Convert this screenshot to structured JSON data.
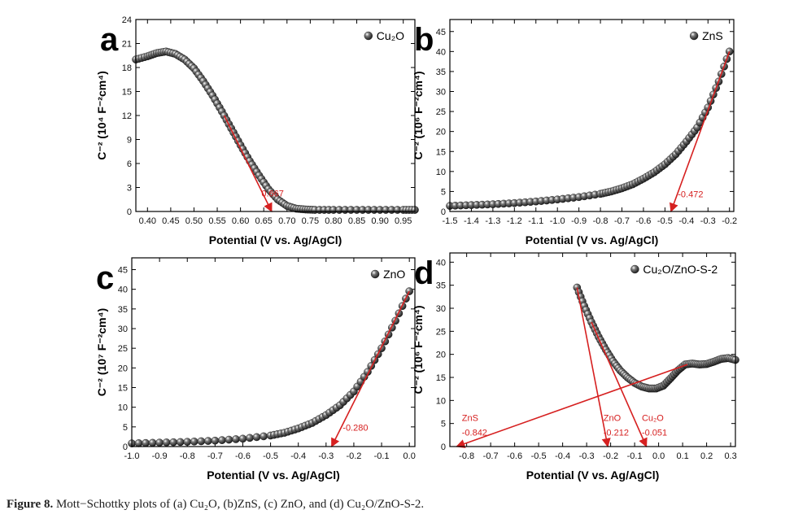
{
  "caption": {
    "label": "Figure 8.",
    "text": "Mott−Schottky plots of (a) Cu₂O, (b)ZnS, (c) ZnO, and (d) Cu₂O/ZnO-S-2."
  },
  "colors": {
    "fit": "#d62020",
    "marker": "#1a1a1a",
    "axis": "#000000"
  },
  "chart_data": [
    {
      "type": "scatter",
      "panel": "a",
      "legend": "Cu₂O",
      "xlabel": "Potential (V vs. Ag/AgCl)",
      "ylabel": "C⁻² (10⁴ F⁻²cm⁴)",
      "xlim": [
        0.375,
        0.975
      ],
      "ylim": [
        0,
        24
      ],
      "xticks": [
        0.4,
        0.45,
        0.5,
        0.55,
        0.6,
        0.65,
        0.7,
        0.75,
        0.8,
        0.85,
        0.9,
        0.95
      ],
      "xtick_labels": [
        "0.40",
        "0.45",
        "0.50",
        "0.55",
        "0.60",
        "0.65",
        "0.70",
        "0.75",
        "0.80",
        "0.85",
        "0.90",
        "0.95"
      ],
      "yticks": [
        0,
        3,
        6,
        9,
        12,
        15,
        18,
        21,
        24
      ],
      "ytick_labels": [
        "0",
        "3",
        "6",
        "9",
        "12",
        "15",
        "18",
        "21",
        "24"
      ],
      "series": [
        {
          "x": [
            0.375,
            0.4,
            0.42,
            0.44,
            0.46,
            0.48,
            0.5,
            0.52,
            0.54,
            0.56,
            0.58,
            0.6,
            0.62,
            0.64,
            0.66,
            0.68,
            0.7,
            0.72,
            0.74,
            0.76,
            0.8,
            0.85,
            0.9,
            0.95,
            0.975
          ],
          "y": [
            19.0,
            19.4,
            19.8,
            20.0,
            19.7,
            19.0,
            17.9,
            16.3,
            14.5,
            12.5,
            10.4,
            8.3,
            6.3,
            4.5,
            2.8,
            1.5,
            0.7,
            0.35,
            0.25,
            0.2,
            0.2,
            0.2,
            0.2,
            0.2,
            0.2
          ]
        }
      ],
      "fits": [
        {
          "from": [
            0.565,
            12.0
          ],
          "to": [
            0.667,
            0
          ]
        }
      ],
      "annotations": [
        {
          "text": "0.667",
          "x": 0.645,
          "y": 1.9
        }
      ]
    },
    {
      "type": "scatter",
      "panel": "b",
      "legend": "ZnS",
      "xlabel": "Potential (V vs. Ag/AgCl)",
      "ylabel": "C⁻² (10⁶ F⁻²cm⁴)",
      "xlim": [
        -1.5,
        -0.18
      ],
      "ylim": [
        0,
        48
      ],
      "xticks": [
        -1.5,
        -1.4,
        -1.3,
        -1.2,
        -1.1,
        -1.0,
        -0.9,
        -0.8,
        -0.7,
        -0.6,
        -0.5,
        -0.4,
        -0.3,
        -0.2
      ],
      "xtick_labels": [
        "-1.5",
        "-1.4",
        "-1.3",
        "-1.2",
        "-1.1",
        "-1.0",
        "-0.9",
        "-0.8",
        "-0.7",
        "-0.6",
        "-0.5",
        "-0.4",
        "-0.3",
        "-0.2"
      ],
      "yticks": [
        0,
        5,
        10,
        15,
        20,
        25,
        30,
        35,
        40,
        45
      ],
      "ytick_labels": [
        "0",
        "5",
        "10",
        "15",
        "20",
        "25",
        "30",
        "35",
        "40",
        "45"
      ],
      "series": [
        {
          "x": [
            -1.5,
            -1.4,
            -1.3,
            -1.2,
            -1.1,
            -1.0,
            -0.9,
            -0.8,
            -0.75,
            -0.7,
            -0.65,
            -0.6,
            -0.55,
            -0.5,
            -0.45,
            -0.4,
            -0.35,
            -0.3,
            -0.25,
            -0.2
          ],
          "y": [
            1.4,
            1.6,
            1.8,
            2.1,
            2.5,
            3.0,
            3.6,
            4.4,
            5.0,
            5.8,
            6.8,
            8.2,
            9.8,
            11.8,
            14.3,
            17.5,
            21.0,
            26.0,
            32.5,
            40.0
          ]
        }
      ],
      "fits": [
        {
          "from": [
            -0.2,
            40.0
          ],
          "to": [
            -0.472,
            0
          ]
        }
      ],
      "annotations": [
        {
          "text": "-0.472",
          "x": -0.44,
          "y": 3.6
        }
      ]
    },
    {
      "type": "scatter",
      "panel": "c",
      "legend": "ZnO",
      "xlabel": "Potential (V vs. Ag/AgCl)",
      "ylabel": "C⁻² (10⁷ F⁻²cm⁴)",
      "xlim": [
        -1.0,
        0.02
      ],
      "ylim": [
        0,
        48
      ],
      "xticks": [
        -1.0,
        -0.9,
        -0.8,
        -0.7,
        -0.6,
        -0.5,
        -0.4,
        -0.3,
        -0.2,
        -0.1,
        0.0
      ],
      "xtick_labels": [
        "-1.0",
        "-0.9",
        "-0.8",
        "-0.7",
        "-0.6",
        "-0.5",
        "-0.4",
        "-0.3",
        "-0.2",
        "-0.1",
        "0.0"
      ],
      "yticks": [
        0,
        5,
        10,
        15,
        20,
        25,
        30,
        35,
        40,
        45
      ],
      "ytick_labels": [
        "0",
        "5",
        "10",
        "15",
        "20",
        "25",
        "30",
        "35",
        "40",
        "45"
      ],
      "series": [
        {
          "x": [
            -1.0,
            -0.9,
            -0.8,
            -0.7,
            -0.6,
            -0.5,
            -0.45,
            -0.4,
            -0.35,
            -0.3,
            -0.25,
            -0.2,
            -0.15,
            -0.1,
            -0.05,
            0.0
          ],
          "y": [
            0.8,
            1.0,
            1.2,
            1.5,
            2.0,
            2.8,
            3.5,
            4.6,
            6.0,
            8.0,
            10.5,
            14.0,
            19.0,
            25.0,
            32.0,
            39.5
          ]
        }
      ],
      "fits": [
        {
          "from": [
            0.0,
            39.5
          ],
          "to": [
            -0.28,
            0
          ]
        }
      ],
      "annotations": [
        {
          "text": "-0.280",
          "x": -0.24,
          "y": 4.0
        }
      ]
    },
    {
      "type": "scatter",
      "panel": "d",
      "legend": "Cu₂O/ZnO-S-2",
      "xlabel": "Potential (V vs. Ag/AgCl)",
      "ylabel": "C⁻² (10⁶ F⁻²cm⁴)",
      "xlim": [
        -0.87,
        0.32
      ],
      "ylim": [
        0,
        42
      ],
      "xticks": [
        -0.8,
        -0.7,
        -0.6,
        -0.5,
        -0.4,
        -0.3,
        -0.2,
        -0.1,
        0.0,
        0.1,
        0.2,
        0.3
      ],
      "xtick_labels": [
        "-0.8",
        "-0.7",
        "-0.6",
        "-0.5",
        "-0.4",
        "-0.3",
        "-0.2",
        "-0.1",
        "0.0",
        "0.1",
        "0.2",
        "0.3"
      ],
      "yticks": [
        0,
        5,
        10,
        15,
        20,
        25,
        30,
        35,
        40
      ],
      "ytick_labels": [
        "0",
        "5",
        "10",
        "15",
        "20",
        "25",
        "30",
        "35",
        "40"
      ],
      "series": [
        {
          "x": [
            -0.34,
            -0.31,
            -0.28,
            -0.25,
            -0.22,
            -0.19,
            -0.16,
            -0.13,
            -0.1,
            -0.07,
            -0.04,
            -0.01,
            0.02,
            0.05,
            0.08,
            0.11,
            0.14,
            0.17,
            0.2,
            0.23,
            0.26,
            0.29,
            0.32
          ],
          "y": [
            34.5,
            30.5,
            27.0,
            23.8,
            21.0,
            18.5,
            16.5,
            15.0,
            13.8,
            13.0,
            12.6,
            12.6,
            13.2,
            14.8,
            16.5,
            17.8,
            18.0,
            17.8,
            17.9,
            18.4,
            19.0,
            19.2,
            18.8
          ]
        }
      ],
      "fits": [
        {
          "from": [
            -0.34,
            34.5
          ],
          "to": [
            -0.212,
            0
          ]
        },
        {
          "from": [
            -0.28,
            27.0
          ],
          "to": [
            -0.051,
            0
          ]
        },
        {
          "from": [
            0.12,
            17.8
          ],
          "to": [
            -0.842,
            0
          ]
        }
      ],
      "annotations": [
        {
          "text": "ZnS",
          "x": -0.82,
          "y": 5.6
        },
        {
          "text": "-0.842",
          "x": -0.82,
          "y": 2.4
        },
        {
          "text": "ZnO",
          "x": -0.23,
          "y": 5.6
        },
        {
          "text": "-0.212",
          "x": -0.23,
          "y": 2.4
        },
        {
          "text": "Cu₂O",
          "x": -0.07,
          "y": 5.6
        },
        {
          "text": "-0.051",
          "x": -0.07,
          "y": 2.4
        }
      ]
    }
  ]
}
